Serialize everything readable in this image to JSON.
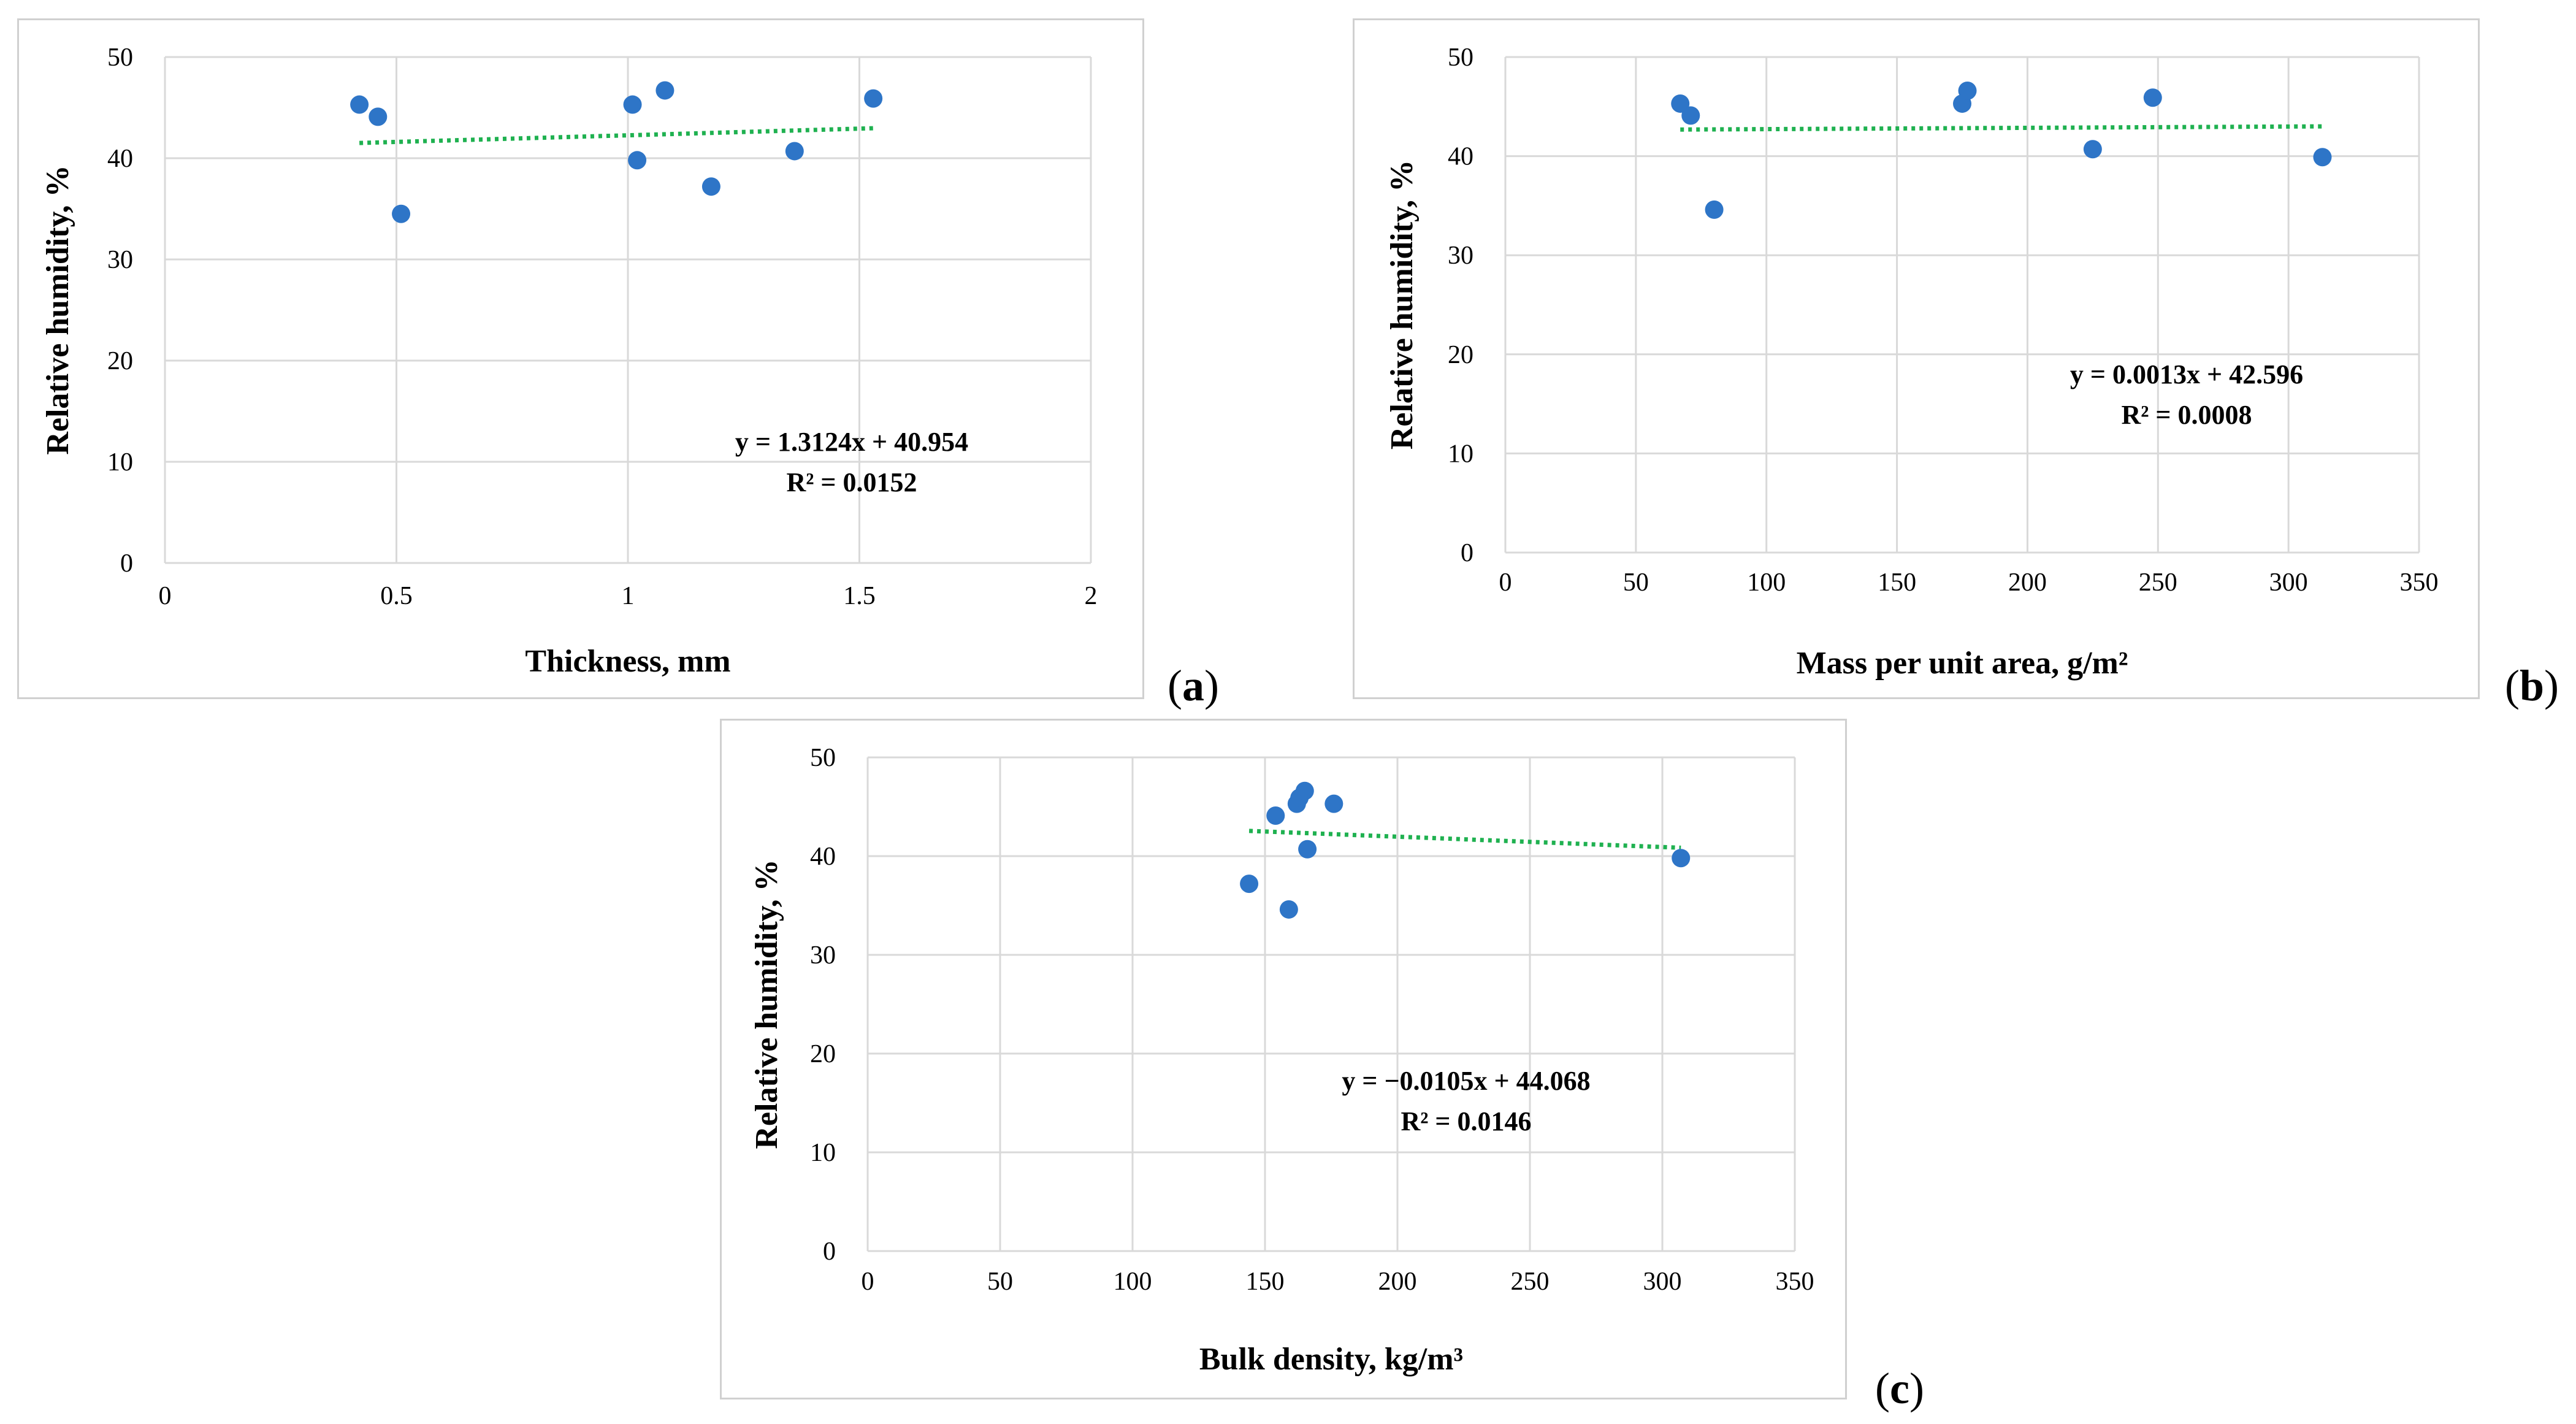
{
  "figure": {
    "panel_labels": [
      "a",
      "b",
      "c"
    ]
  },
  "colors": {
    "point": "#2E75C7",
    "trend": "#1FB150",
    "grid": "#D9D9D9",
    "text": "#000000"
  },
  "chart_data": [
    {
      "type": "scatter",
      "panel": "a",
      "xlabel": "Thickness, mm",
      "ylabel": "Relative humidity, %",
      "xlim": [
        0,
        2
      ],
      "ylim": [
        0,
        50
      ],
      "xticks": [
        0,
        0.5,
        1,
        1.5,
        2
      ],
      "xtick_labels": [
        "0",
        "0.5",
        "1",
        "1.5",
        "2"
      ],
      "yticks": [
        0,
        10,
        20,
        30,
        40,
        50
      ],
      "ytick_labels": [
        "0",
        "10",
        "20",
        "30",
        "40",
        "50"
      ],
      "x": [
        0.42,
        0.46,
        0.51,
        1.01,
        1.02,
        1.08,
        1.18,
        1.36,
        1.53
      ],
      "y": [
        45.3,
        44.1,
        34.5,
        45.3,
        39.8,
        46.7,
        37.2,
        40.7,
        45.9
      ],
      "trendline": {
        "x_range": [
          0.42,
          1.53
        ],
        "slope": 1.3124,
        "intercept": 40.954
      },
      "equation": "y = 1.3124x + 40.954",
      "r2": "R² = 0.0152"
    },
    {
      "type": "scatter",
      "panel": "b",
      "xlabel": "Mass per unit area, g/m²",
      "ylabel": "Relative humidity, %",
      "xlim": [
        0,
        350
      ],
      "ylim": [
        0,
        50
      ],
      "xticks": [
        0,
        50,
        100,
        150,
        200,
        250,
        300,
        350
      ],
      "xtick_labels": [
        "0",
        "50",
        "100",
        "150",
        "200",
        "250",
        "300",
        "350"
      ],
      "yticks": [
        0,
        10,
        20,
        30,
        40,
        50
      ],
      "ytick_labels": [
        "0",
        "10",
        "20",
        "30",
        "40",
        "50"
      ],
      "x": [
        67,
        71,
        80,
        175,
        177,
        225,
        248,
        313
      ],
      "y": [
        45.3,
        44.1,
        34.6,
        45.3,
        46.6,
        40.7,
        45.9,
        39.9
      ],
      "trendline": {
        "x_range": [
          67,
          313
        ],
        "slope": 0.0013,
        "intercept": 42.596
      },
      "equation": "y = 0.0013x + 42.596",
      "r2": "R² = 0.0008"
    },
    {
      "type": "scatter",
      "panel": "c",
      "xlabel": "Bulk density, kg/m³",
      "ylabel": "Relative humidity, %",
      "xlim": [
        0,
        350
      ],
      "ylim": [
        0,
        50
      ],
      "xticks": [
        0,
        50,
        100,
        150,
        200,
        250,
        300,
        350
      ],
      "xtick_labels": [
        "0",
        "50",
        "100",
        "150",
        "200",
        "250",
        "300",
        "350"
      ],
      "yticks": [
        0,
        10,
        20,
        30,
        40,
        50
      ],
      "ytick_labels": [
        "0",
        "10",
        "20",
        "30",
        "40",
        "50"
      ],
      "x": [
        144,
        154,
        159,
        162,
        163,
        165,
        166,
        176,
        307
      ],
      "y": [
        37.2,
        44.1,
        34.6,
        45.3,
        45.9,
        46.6,
        40.7,
        45.3,
        39.8
      ],
      "trendline": {
        "x_range": [
          144,
          307
        ],
        "slope": -0.0105,
        "intercept": 44.068
      },
      "equation": "y = −0.0105x + 44.068",
      "r2": "R² = 0.0146"
    }
  ]
}
